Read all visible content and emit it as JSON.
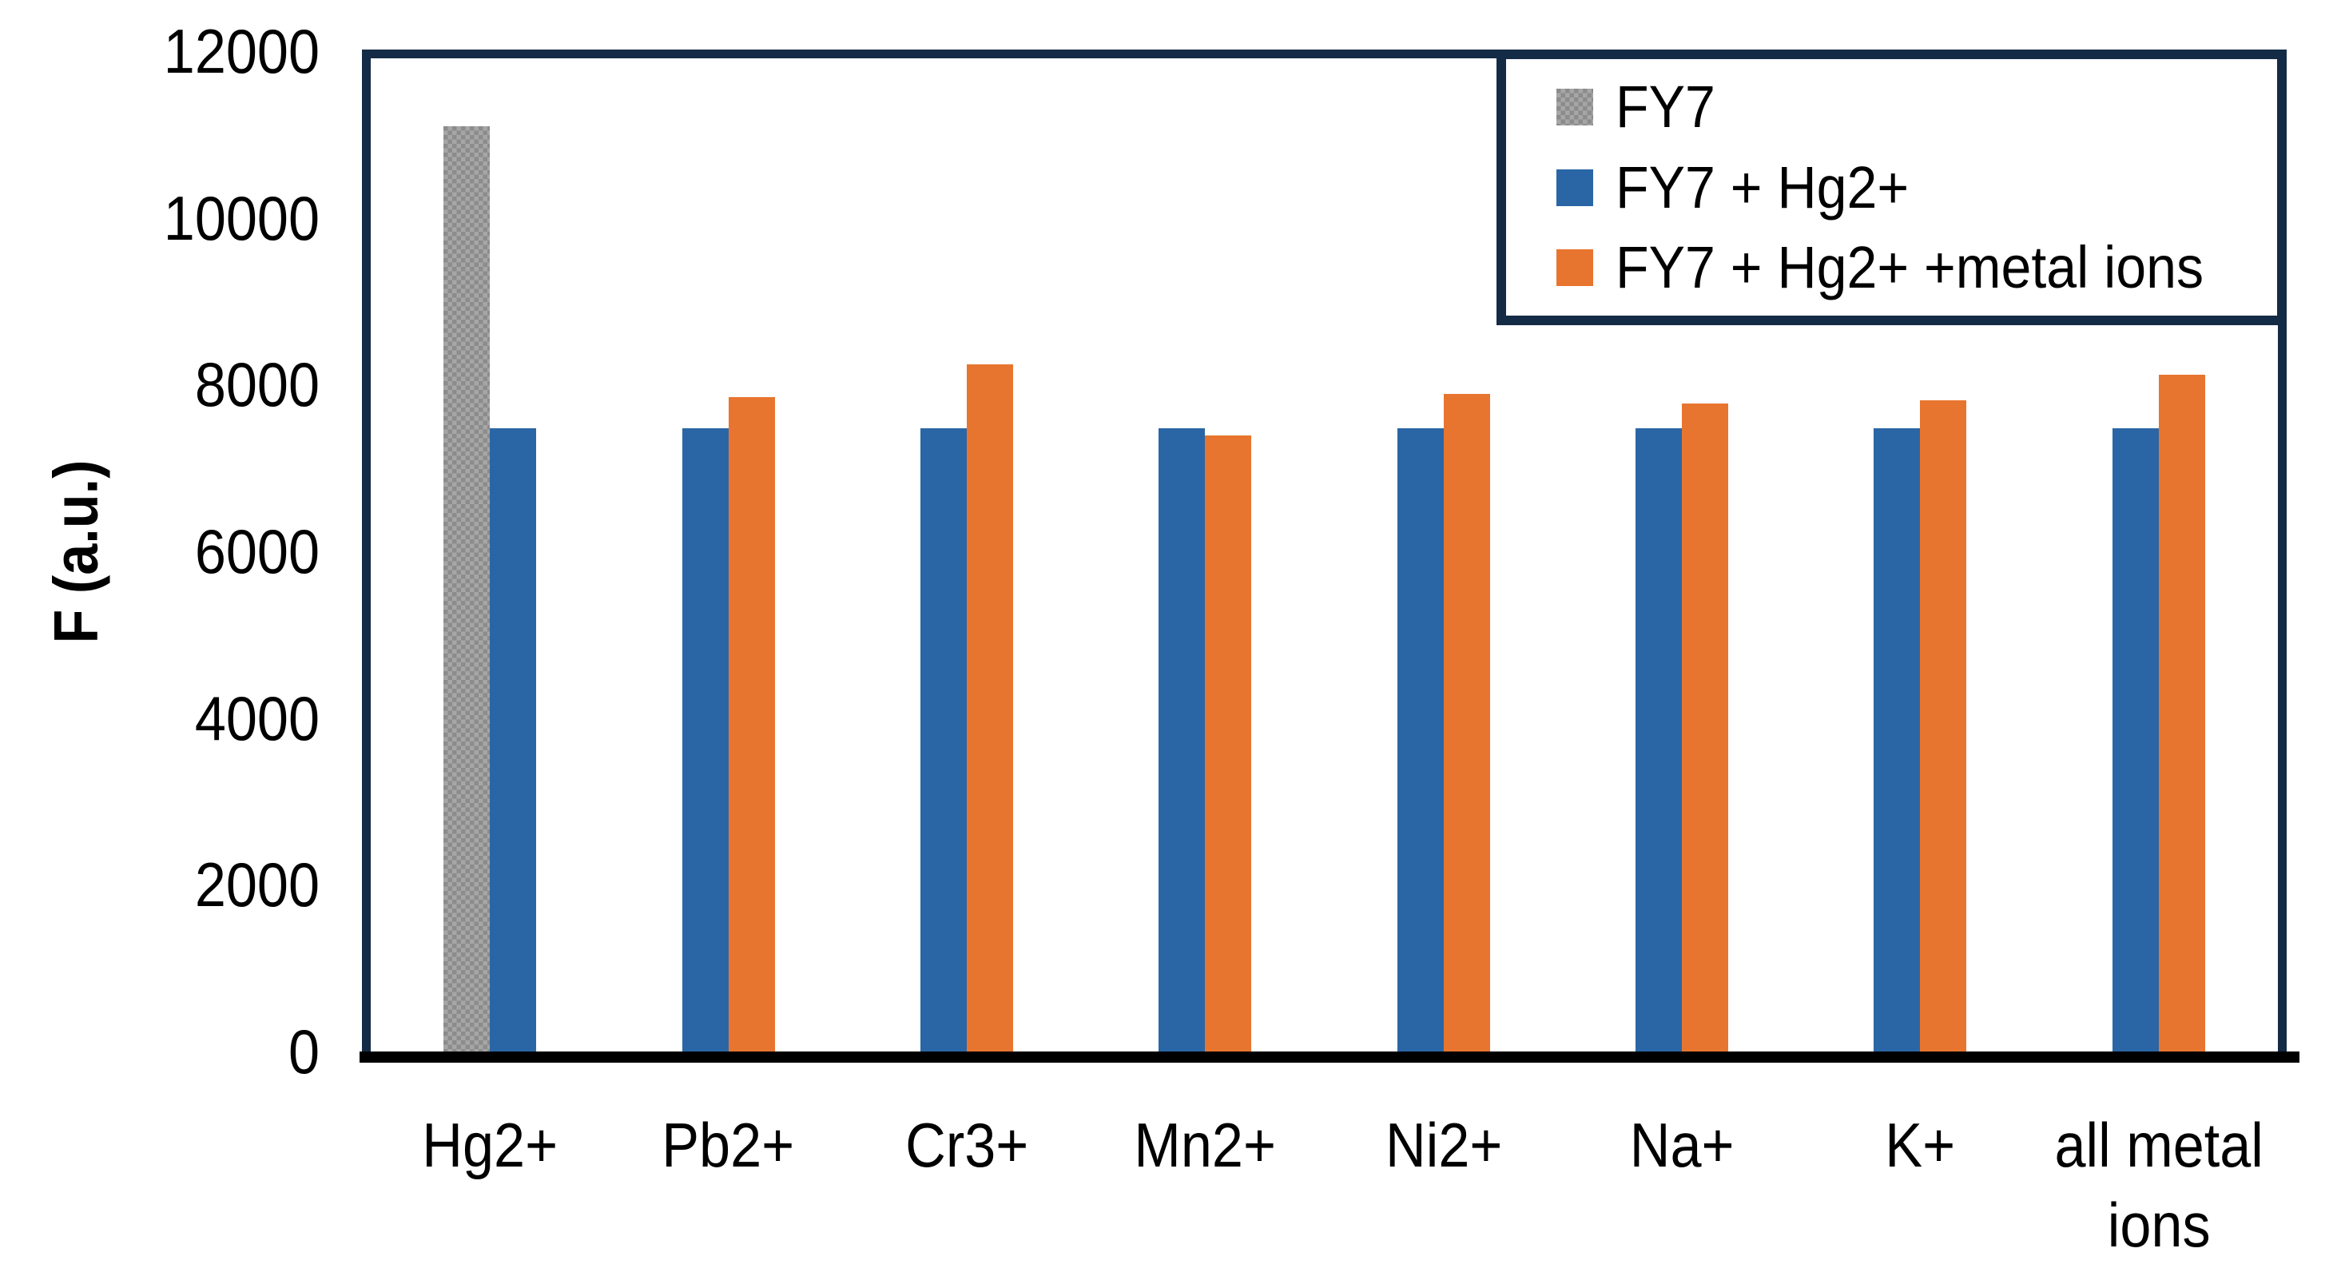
{
  "chart_data": {
    "type": "bar",
    "title": "",
    "xlabel": "",
    "ylabel": "F (a.u.)",
    "ylim": [
      0,
      12000
    ],
    "yticks": [
      0,
      2000,
      4000,
      6000,
      8000,
      10000,
      12000
    ],
    "grid": false,
    "legend_position": "top-right-inside-box",
    "frame_color": "#142b45",
    "axis_line_color": "#000000",
    "categories": [
      "Hg2+",
      "Pb2+",
      "Cr3+",
      "Mn2+",
      "Ni2+",
      "Na+",
      "K+",
      "all metal\nions"
    ],
    "series": [
      {
        "name": "FY7",
        "color": "#9a9a9a",
        "pattern": "checker",
        "values": [
          11100,
          null,
          null,
          null,
          null,
          null,
          null,
          null
        ]
      },
      {
        "name": "FY7 + Hg2+",
        "color": "#2a66a5",
        "pattern": null,
        "values": [
          7480,
          7480,
          7480,
          7480,
          7480,
          7480,
          7480,
          7480
        ]
      },
      {
        "name": "FY7 + Hg2+ +metal ions",
        "color": "#e8752f",
        "pattern": null,
        "values": [
          null,
          7850,
          8240,
          7390,
          7890,
          7770,
          7810,
          8120
        ]
      }
    ]
  }
}
